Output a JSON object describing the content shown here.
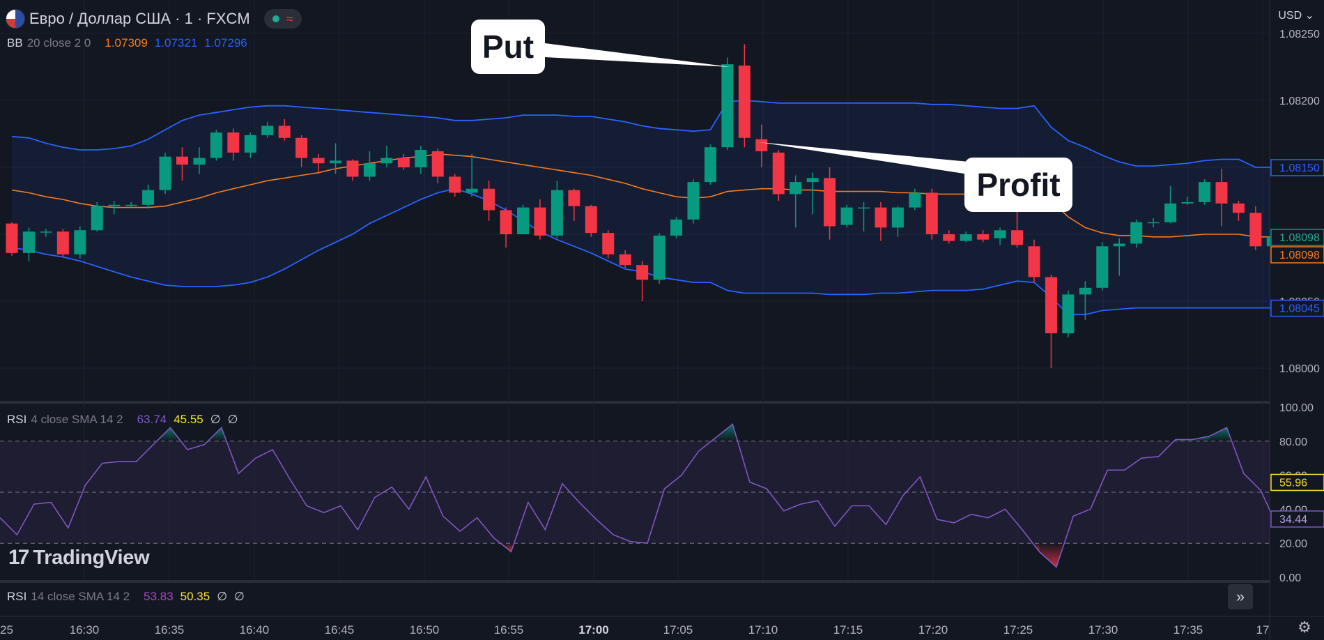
{
  "header": {
    "symbol": "Евро / Доллар США · 1 · FXCM",
    "status_icon": "market-open-dot",
    "status_wave": "≈",
    "currency": "USD",
    "currency_icon": "chevron-down-icon"
  },
  "indicators": {
    "bb": {
      "name": "BB",
      "params": "20 close 2 0",
      "v1": "1.07309",
      "v2": "1.07321",
      "v3": "1.07296",
      "c1": "#f57c1f",
      "c2": "#2962ff",
      "c3": "#2962ff"
    },
    "rsi1": {
      "name": "RSI",
      "params": "4 close SMA 14 2",
      "v1": "63.74",
      "v2": "45.55",
      "v3": "∅",
      "v4": "∅",
      "c1": "#7e57c2",
      "c2": "#f7e02b"
    },
    "rsi2": {
      "name": "RSI",
      "params": "14 close SMA 14 2",
      "v1": "53.83",
      "v2": "50.35",
      "v3": "∅",
      "v4": "∅",
      "c1": "#ab47bc",
      "c2": "#f7e02b"
    }
  },
  "annotations": {
    "put": "Put",
    "profit": "Profit"
  },
  "branding": {
    "logo_text": "TradingView",
    "logo_mark": "17"
  },
  "controls": {
    "expand_icon": "double-chevron-right-icon",
    "expand_glyph": "»",
    "settings_icon": "gear-icon",
    "settings_glyph": "⚙"
  },
  "colors": {
    "up": "#089981",
    "down": "#f23645",
    "basis": "#f57c1f",
    "band": "#2962ff",
    "rsi": "#7e57c2",
    "bg": "#131722"
  },
  "chart_data": [
    {
      "type": "candlestick",
      "title": "Евро / Доллар США · 1 · FXCM",
      "ylim": [
        1.07975,
        1.08255
      ],
      "y_ticks": [
        "1.08250",
        "1.08200",
        "1.08150",
        "1.08100",
        "1.08050",
        "1.08000"
      ],
      "x_ticks": [
        "25",
        "16:30",
        "16:35",
        "16:40",
        "16:45",
        "16:50",
        "16:55",
        "17:00",
        "17:05",
        "17:10",
        "17:15",
        "17:20",
        "17:25",
        "17:30",
        "17:35",
        "17"
      ],
      "price_labels": [
        {
          "value": 1.0815,
          "text": "1.08150",
          "kind": "band"
        },
        {
          "value": 1.08098,
          "text": "1.08098",
          "kind": "up"
        },
        {
          "value": 1.08098,
          "text": "1.08098",
          "kind": "basis"
        },
        {
          "value": 1.08045,
          "text": "1.08045",
          "kind": "band"
        }
      ],
      "candles": [
        [
          1.08108,
          1.08086,
          1.08109,
          1.08084
        ],
        [
          1.08086,
          1.08102,
          1.08105,
          1.0808
        ],
        [
          1.08102,
          1.08102,
          1.08104,
          1.08098
        ],
        [
          1.08102,
          1.08085,
          1.08104,
          1.08083
        ],
        [
          1.08085,
          1.08103,
          1.08106,
          1.08082
        ],
        [
          1.08103,
          1.08121,
          1.08124,
          1.08102
        ],
        [
          1.08121,
          1.08122,
          1.08125,
          1.08115
        ],
        [
          1.08122,
          1.08122,
          1.08124,
          1.0812
        ],
        [
          1.08122,
          1.08133,
          1.08137,
          1.0812
        ],
        [
          1.08133,
          1.08158,
          1.08161,
          1.0813
        ],
        [
          1.08158,
          1.08152,
          1.08165,
          1.0814
        ],
        [
          1.08152,
          1.08157,
          1.08165,
          1.08145
        ],
        [
          1.08157,
          1.08176,
          1.08178,
          1.08155
        ],
        [
          1.08176,
          1.08161,
          1.08179,
          1.08155
        ],
        [
          1.08161,
          1.08174,
          1.08176,
          1.08157
        ],
        [
          1.08174,
          1.08181,
          1.08184,
          1.08172
        ],
        [
          1.08181,
          1.08172,
          1.08186,
          1.0817
        ],
        [
          1.08172,
          1.08157,
          1.08174,
          1.0815
        ],
        [
          1.08157,
          1.08153,
          1.0816,
          1.08145
        ],
        [
          1.08153,
          1.08155,
          1.08168,
          1.08145
        ],
        [
          1.08155,
          1.08143,
          1.08156,
          1.0814
        ],
        [
          1.08143,
          1.08153,
          1.08162,
          1.0814
        ],
        [
          1.08153,
          1.08157,
          1.08166,
          1.0815
        ],
        [
          1.08157,
          1.0815,
          1.0816,
          1.08148
        ],
        [
          1.0815,
          1.08163,
          1.08166,
          1.08145
        ],
        [
          1.08162,
          1.08143,
          1.08164,
          1.08138
        ],
        [
          1.08143,
          1.08131,
          1.08145,
          1.08128
        ],
        [
          1.08131,
          1.08134,
          1.0816,
          1.08128
        ],
        [
          1.08134,
          1.08118,
          1.0814,
          1.0811
        ],
        [
          1.08118,
          1.081,
          1.0812,
          1.0809
        ],
        [
          1.081,
          1.0812,
          1.08122,
          1.081
        ],
        [
          1.0812,
          1.08099,
          1.08126,
          1.08096
        ],
        [
          1.08099,
          1.08133,
          1.0814,
          1.08097
        ],
        [
          1.08133,
          1.08121,
          1.08134,
          1.0811
        ],
        [
          1.08121,
          1.08101,
          1.08122,
          1.08098
        ],
        [
          1.08101,
          1.08085,
          1.08103,
          1.08082
        ],
        [
          1.08085,
          1.08077,
          1.08088,
          1.08075
        ],
        [
          1.08077,
          1.08066,
          1.0808,
          1.0805
        ],
        [
          1.08066,
          1.08099,
          1.08101,
          1.08063
        ],
        [
          1.08099,
          1.08111,
          1.08113,
          1.08097
        ],
        [
          1.08111,
          1.08139,
          1.08141,
          1.08108
        ],
        [
          1.08139,
          1.08165,
          1.08167,
          1.08137
        ],
        [
          1.08165,
          1.08227,
          1.08232,
          1.08163
        ],
        [
          1.08226,
          1.08172,
          1.08242,
          1.08165
        ],
        [
          1.08171,
          1.08162,
          1.08182,
          1.0815
        ],
        [
          1.08161,
          1.0813,
          1.08163,
          1.08125
        ],
        [
          1.0813,
          1.08139,
          1.08144,
          1.08105
        ],
        [
          1.08139,
          1.08142,
          1.08146,
          1.08115
        ],
        [
          1.08142,
          1.08106,
          1.0815,
          1.08096
        ],
        [
          1.08107,
          1.0812,
          1.08122,
          1.08105
        ],
        [
          1.0812,
          1.0812,
          1.08124,
          1.08102
        ],
        [
          1.0812,
          1.08105,
          1.08124,
          1.08095
        ],
        [
          1.08105,
          1.0812,
          1.08121,
          1.08098
        ],
        [
          1.0812,
          1.08131,
          1.08134,
          1.08118
        ],
        [
          1.08131,
          1.081,
          1.08134,
          1.08096
        ],
        [
          1.081,
          1.08095,
          1.08103,
          1.08093
        ],
        [
          1.08095,
          1.081,
          1.08102,
          1.08094
        ],
        [
          1.081,
          1.08096,
          1.08103,
          1.08094
        ],
        [
          1.08097,
          1.08103,
          1.08105,
          1.08092
        ],
        [
          1.08103,
          1.08092,
          1.08118,
          1.0809
        ],
        [
          1.08091,
          1.08068,
          1.08096,
          1.08064
        ],
        [
          1.08068,
          1.08026,
          1.0807,
          1.08
        ],
        [
          1.08026,
          1.08055,
          1.08058,
          1.08023
        ],
        [
          1.08055,
          1.0806,
          1.08065,
          1.08036
        ],
        [
          1.0806,
          1.08091,
          1.08094,
          1.08058
        ],
        [
          1.08091,
          1.08093,
          1.08097,
          1.08069
        ],
        [
          1.08093,
          1.08109,
          1.08111,
          1.0809
        ],
        [
          1.08109,
          1.08109,
          1.08112,
          1.08105
        ],
        [
          1.08109,
          1.08123,
          1.08136,
          1.08108
        ],
        [
          1.08123,
          1.08124,
          1.08128,
          1.08122
        ],
        [
          1.08124,
          1.08139,
          1.08141,
          1.08122
        ],
        [
          1.08139,
          1.08123,
          1.08149,
          1.08106
        ],
        [
          1.08123,
          1.08116,
          1.08125,
          1.0811
        ],
        [
          1.08116,
          1.08091,
          1.08121,
          1.08088
        ],
        [
          1.08091,
          1.08098,
          1.081,
          1.08089
        ]
      ],
      "series": [
        {
          "name": "BB basis",
          "values": [
            1.08133,
            1.08131,
            1.08128,
            1.08126,
            1.08123,
            1.08121,
            1.0812,
            1.0812,
            1.0812,
            1.08121,
            1.08124,
            1.08127,
            1.08131,
            1.08134,
            1.08137,
            1.0814,
            1.08142,
            1.08144,
            1.08146,
            1.08149,
            1.08151,
            1.08153,
            1.08155,
            1.08157,
            1.08158,
            1.0816,
            1.08159,
            1.08158,
            1.08156,
            1.08154,
            1.08152,
            1.0815,
            1.08148,
            1.08146,
            1.08144,
            1.08141,
            1.08138,
            1.08134,
            1.08131,
            1.08128,
            1.08127,
            1.08128,
            1.08132,
            1.08133,
            1.08134,
            1.08134,
            1.08133,
            1.08133,
            1.08132,
            1.08132,
            1.08132,
            1.08132,
            1.08131,
            1.08131,
            1.0813,
            1.0813,
            1.0813,
            1.0813,
            1.08131,
            1.08131,
            1.08131,
            1.08125,
            1.08113,
            1.08105,
            1.08101,
            1.08099,
            1.08099,
            1.08098,
            1.08098,
            1.08099,
            1.081,
            1.081,
            1.081,
            1.08098,
            1.08098
          ]
        },
        {
          "name": "BB upper",
          "values": [
            1.08173,
            1.08172,
            1.08168,
            1.08165,
            1.08163,
            1.08163,
            1.08164,
            1.08166,
            1.08171,
            1.08178,
            1.08185,
            1.08189,
            1.08191,
            1.08193,
            1.08195,
            1.08196,
            1.08196,
            1.08195,
            1.08194,
            1.08193,
            1.08192,
            1.08191,
            1.0819,
            1.08189,
            1.08188,
            1.08187,
            1.08185,
            1.08185,
            1.08186,
            1.08187,
            1.08189,
            1.08189,
            1.08189,
            1.08188,
            1.08188,
            1.08186,
            1.08184,
            1.08181,
            1.08179,
            1.08178,
            1.08177,
            1.08178,
            1.08199,
            1.082,
            1.08199,
            1.08198,
            1.08198,
            1.08198,
            1.08198,
            1.08198,
            1.08198,
            1.08198,
            1.08198,
            1.08198,
            1.08197,
            1.08197,
            1.08196,
            1.08195,
            1.08194,
            1.08194,
            1.08196,
            1.0818,
            1.0817,
            1.08165,
            1.08159,
            1.08154,
            1.08151,
            1.08151,
            1.08152,
            1.08153,
            1.08155,
            1.08156,
            1.08156,
            1.0815,
            1.0815
          ]
        },
        {
          "name": "BB lower",
          "values": [
            1.0809,
            1.08088,
            1.08085,
            1.08083,
            1.0808,
            1.08076,
            1.08072,
            1.08068,
            1.08065,
            1.08062,
            1.08061,
            1.08061,
            1.08061,
            1.08062,
            1.08064,
            1.08068,
            1.08074,
            1.08081,
            1.08088,
            1.08094,
            1.081,
            1.08108,
            1.08114,
            1.0812,
            1.08126,
            1.08131,
            1.08134,
            1.0813,
            1.08125,
            1.08118,
            1.0811,
            1.08102,
            1.08096,
            1.08091,
            1.08086,
            1.0808,
            1.08074,
            1.08072,
            1.08068,
            1.08066,
            1.08064,
            1.08064,
            1.08058,
            1.08056,
            1.08056,
            1.08056,
            1.08056,
            1.08056,
            1.08055,
            1.08055,
            1.08055,
            1.08056,
            1.08056,
            1.08057,
            1.08058,
            1.08058,
            1.08058,
            1.08059,
            1.08062,
            1.08065,
            1.08064,
            1.08053,
            1.0804,
            1.0804,
            1.08043,
            1.08044,
            1.08045,
            1.08045,
            1.08045,
            1.08045,
            1.08045,
            1.08045,
            1.08045,
            1.08045,
            1.08045
          ]
        }
      ]
    },
    {
      "type": "line",
      "title": "RSI 4 close SMA 14 2",
      "ylim": [
        0,
        100
      ],
      "y_ticks": [
        "100.00",
        "80.00",
        "60.00",
        "40.00",
        "20.00",
        "0.00"
      ],
      "levels": [
        80,
        50,
        20
      ],
      "price_labels": [
        {
          "value": 55.96,
          "text": "55.96",
          "kind": "sma"
        },
        {
          "value": 34.44,
          "text": "34.44",
          "kind": "rsi"
        }
      ],
      "series": [
        {
          "name": "RSI",
          "values": [
            35,
            25,
            43,
            44,
            29,
            54,
            67,
            68,
            68,
            78,
            88,
            75,
            78,
            88,
            61,
            70,
            75,
            58,
            42,
            38,
            42,
            28,
            47,
            53,
            40,
            59,
            36,
            27,
            35,
            23,
            15,
            44,
            28,
            55,
            44,
            34,
            25,
            21,
            20,
            52,
            60,
            74,
            82,
            90,
            56,
            52,
            39,
            43,
            45,
            30,
            42,
            42,
            31,
            48,
            59,
            34,
            32,
            37,
            35,
            40,
            28,
            15,
            6,
            36,
            40,
            63,
            63,
            70,
            71,
            81,
            81,
            83,
            88,
            61,
            51,
            29,
            33
          ]
        }
      ]
    }
  ]
}
